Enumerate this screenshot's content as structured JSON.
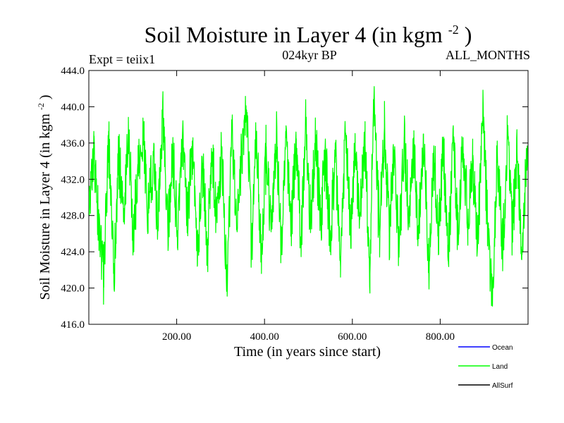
{
  "chart_data": {
    "type": "line",
    "title": {
      "main": "Soil Moisture in Layer 4 (in kgm",
      "sup": "-2",
      "close": ")"
    },
    "subtitle_left": "Expt = teiix1",
    "subtitle_center": "024kyr BP",
    "subtitle_right": "ALL_MONTHS",
    "xlabel": "Time (in years since start)",
    "ylabel": {
      "main": "Soil Moisture in Layer 4 (in kgm",
      "sup": "-2",
      "close": ")"
    },
    "xlim": [
      0,
      1000
    ],
    "ylim": [
      416,
      444
    ],
    "x_ticks": [
      {
        "value": 200,
        "label": "200.00"
      },
      {
        "value": 400,
        "label": "400.00"
      },
      {
        "value": 600,
        "label": "600.00"
      },
      {
        "value": 800,
        "label": "800.00"
      }
    ],
    "y_ticks": [
      {
        "value": 416,
        "label": "416.0"
      },
      {
        "value": 420,
        "label": "420.0"
      },
      {
        "value": 424,
        "label": "424.0"
      },
      {
        "value": 428,
        "label": "428.0"
      },
      {
        "value": 432,
        "label": "432.0"
      },
      {
        "value": 436,
        "label": "436.0"
      },
      {
        "value": 440,
        "label": "440.0"
      },
      {
        "value": 444,
        "label": "444.0"
      }
    ],
    "grid": false,
    "legend_placement": "bottom-right",
    "legend": [
      {
        "name": "Ocean",
        "color": "#0000ff"
      },
      {
        "name": "Land",
        "color": "#00ff00"
      },
      {
        "name": "AllSurf",
        "color": "#000000"
      }
    ],
    "series": [
      {
        "name": "Land",
        "color": "#00ff00",
        "x_start": 1,
        "x_end": 1000,
        "mean": 431.0,
        "noise_amplitude": 3.2,
        "values": [
          [
            1,
            430.5
          ],
          [
            12,
            434.8
          ],
          [
            23,
            426.1
          ],
          [
            34,
            421.2
          ],
          [
            45,
            437.3
          ],
          [
            57,
            420.7
          ],
          [
            68,
            435.0
          ],
          [
            79,
            427.3
          ],
          [
            90,
            437.2
          ],
          [
            101,
            425.6
          ],
          [
            112,
            433.1
          ],
          [
            124,
            436.3
          ],
          [
            135,
            428.6
          ],
          [
            146,
            434.1
          ],
          [
            157,
            426.8
          ],
          [
            168,
            438.8
          ],
          [
            180,
            426.0
          ],
          [
            191,
            435.5
          ],
          [
            202,
            425.0
          ],
          [
            213,
            436.7
          ],
          [
            225,
            427.5
          ],
          [
            236,
            436.0
          ],
          [
            247,
            422.4
          ],
          [
            258,
            434.5
          ],
          [
            270,
            424.4
          ],
          [
            281,
            435.0
          ],
          [
            292,
            427.2
          ],
          [
            303,
            435.6
          ],
          [
            315,
            419.1
          ],
          [
            326,
            437.6
          ],
          [
            337,
            426.4
          ],
          [
            348,
            434.2
          ],
          [
            359,
            439.3
          ],
          [
            371,
            424.2
          ],
          [
            382,
            437.3
          ],
          [
            393,
            421.6
          ],
          [
            404,
            435.6
          ],
          [
            415,
            426.2
          ],
          [
            427,
            436.8
          ],
          [
            438,
            424.5
          ],
          [
            449,
            437.9
          ],
          [
            460,
            426.4
          ],
          [
            472,
            435.8
          ],
          [
            483,
            425.6
          ],
          [
            494,
            438.3
          ],
          [
            505,
            426.8
          ],
          [
            516,
            436.3
          ],
          [
            528,
            427.1
          ],
          [
            539,
            435.0
          ],
          [
            550,
            424.7
          ],
          [
            561,
            436.0
          ],
          [
            573,
            421.2
          ],
          [
            584,
            437.2
          ],
          [
            595,
            426.4
          ],
          [
            606,
            434.8
          ],
          [
            617,
            427.6
          ],
          [
            629,
            436.0
          ],
          [
            640,
            421.6
          ],
          [
            648,
            440.8
          ],
          [
            662,
            425.8
          ],
          [
            673,
            437.7
          ],
          [
            684,
            426.0
          ],
          [
            695,
            435.2
          ],
          [
            706,
            424.4
          ],
          [
            718,
            436.4
          ],
          [
            729,
            427.2
          ],
          [
            740,
            435.8
          ],
          [
            751,
            425.9
          ],
          [
            762,
            437.0
          ],
          [
            774,
            421.8
          ],
          [
            785,
            434.8
          ],
          [
            796,
            426.5
          ],
          [
            807,
            436.1
          ],
          [
            818,
            423.0
          ],
          [
            830,
            435.8
          ],
          [
            841,
            425.8
          ],
          [
            852,
            436.6
          ],
          [
            863,
            426.7
          ],
          [
            874,
            434.0
          ],
          [
            885,
            425.1
          ],
          [
            897,
            439.0
          ],
          [
            908,
            427.0
          ],
          [
            919,
            418.0
          ],
          [
            930,
            435.2
          ],
          [
            942,
            424.4
          ],
          [
            953,
            436.4
          ],
          [
            964,
            426.9
          ],
          [
            975,
            435.0
          ],
          [
            986,
            424.2
          ],
          [
            998,
            434.8
          ]
        ]
      }
    ]
  }
}
